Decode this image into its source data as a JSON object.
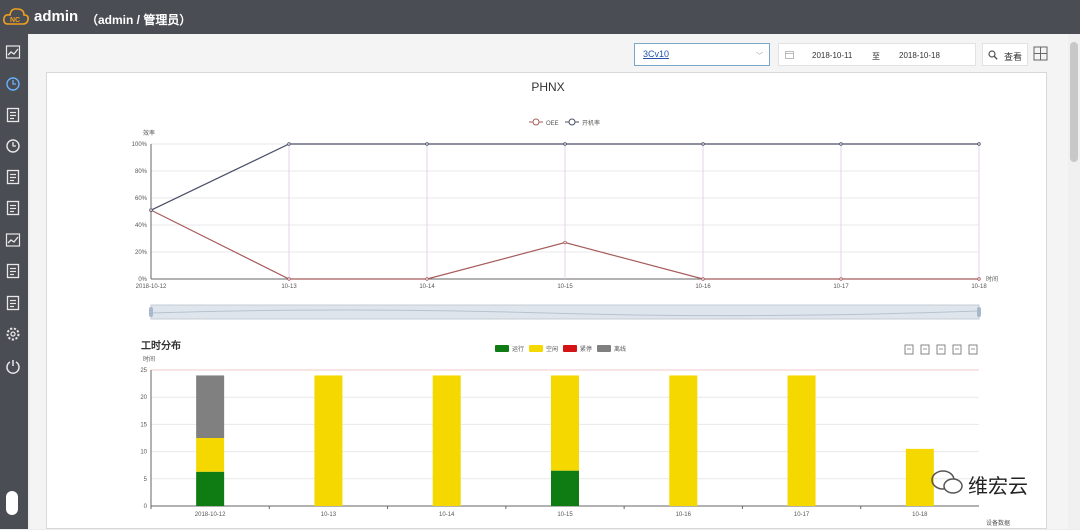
{
  "header": {
    "app_title": "admin",
    "user_info": "（admin / 管理员）"
  },
  "sidebar": {
    "items": [
      "dashboard-icon",
      "monitor-icon",
      "report-icon",
      "clock-icon",
      "alarm-icon",
      "analysis-icon",
      "trend-icon",
      "statistics-icon",
      "document-icon",
      "settings-icon",
      "power-icon"
    ]
  },
  "toolbar": {
    "device_value": "3Cv10",
    "start_date": "2018-10-11",
    "date_separator": "至",
    "end_date": "2018-10-18",
    "query_label": "查看"
  },
  "watermark": {
    "text": "维宏云"
  },
  "chart_data": [
    {
      "type": "line",
      "title": "PHNX",
      "ylabel": "效率",
      "xlabel": "时间",
      "x": [
        "2018-10-12",
        "10-13",
        "10-14",
        "10-15",
        "10-16",
        "10-17",
        "10-18"
      ],
      "y_ticks": [
        "0%",
        "20%",
        "40%",
        "60%",
        "80%",
        "100%"
      ],
      "ylim": [
        0,
        100
      ],
      "series": [
        {
          "name": "OEE",
          "color": "#a65c5c",
          "values": [
            51,
            0,
            0,
            27,
            0,
            0,
            0
          ]
        },
        {
          "name": "开机率",
          "color": "#4a4e66",
          "values": [
            51,
            100,
            100,
            100,
            100,
            100,
            100
          ]
        }
      ],
      "legend": "top-center",
      "datazoom": true
    },
    {
      "type": "bar",
      "stacked": true,
      "title": "工时分布",
      "ylabel": "时间",
      "xlabel": "设备数据",
      "categories": [
        "2018-10-12",
        "10-13",
        "10-14",
        "10-15",
        "10-16",
        "10-17",
        "10-18"
      ],
      "y_ticks": [
        "0",
        "5",
        "10",
        "15",
        "20",
        "25"
      ],
      "ylim": [
        0,
        25
      ],
      "series": [
        {
          "name": "运行",
          "color": "#0e7c12",
          "values": [
            6.3,
            0,
            0,
            6.5,
            0,
            0,
            0
          ]
        },
        {
          "name": "空闲",
          "color": "#f5d800",
          "values": [
            6.2,
            24,
            24,
            17.5,
            24,
            24,
            10.5
          ]
        },
        {
          "name": "紧停",
          "color": "#d41414",
          "values": [
            0,
            0,
            0,
            0,
            0,
            0,
            0
          ]
        },
        {
          "name": "离线",
          "color": "#808080",
          "values": [
            11.5,
            0,
            0,
            0,
            0,
            0,
            0
          ]
        }
      ],
      "legend": "top-center",
      "toolbox": [
        "data-view-icon",
        "line-switch-icon",
        "bar-switch-icon",
        "restore-icon",
        "save-image-icon"
      ]
    }
  ]
}
